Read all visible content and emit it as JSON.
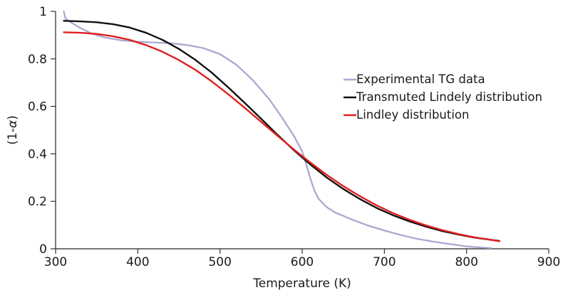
{
  "chart_data": {
    "type": "line",
    "title": "",
    "xlabel": "Temperature (K)",
    "ylabel_prefix": "(1-",
    "ylabel_symbol": "α",
    "ylabel_suffix": ")",
    "xlim": [
      300,
      900
    ],
    "ylim": [
      0,
      1
    ],
    "x_ticks": [
      300,
      400,
      500,
      600,
      700,
      800,
      900
    ],
    "y_ticks": [
      0,
      0.2,
      0.4,
      0.6,
      0.8,
      1
    ],
    "x_tick_labels": [
      "300",
      "400",
      "500",
      "600",
      "700",
      "800",
      "900"
    ],
    "y_tick_labels": [
      "0",
      "0.2",
      "0.4",
      "0.6",
      "0.8",
      "1"
    ],
    "grid": false,
    "legend_position": "right-middle",
    "series": [
      {
        "name": "Experimental TG data",
        "color": "#a9a9cf",
        "x": [
          310,
          312,
          318,
          330,
          345,
          360,
          380,
          400,
          420,
          440,
          460,
          480,
          500,
          520,
          540,
          560,
          575,
          590,
          600,
          605,
          610,
          615,
          620,
          630,
          640,
          660,
          680,
          700,
          720,
          740,
          760,
          780,
          800,
          815,
          830
        ],
        "y": [
          1.0,
          0.97,
          0.955,
          0.93,
          0.905,
          0.89,
          0.878,
          0.872,
          0.869,
          0.866,
          0.858,
          0.845,
          0.82,
          0.775,
          0.71,
          0.63,
          0.555,
          0.475,
          0.41,
          0.355,
          0.295,
          0.245,
          0.21,
          0.175,
          0.153,
          0.124,
          0.098,
          0.077,
          0.058,
          0.042,
          0.03,
          0.02,
          0.01,
          0.006,
          0.003
        ]
      },
      {
        "name": "Transmuted Lindely distribution",
        "color": "#111111",
        "x": [
          310,
          330,
          350,
          370,
          390,
          410,
          430,
          450,
          470,
          490,
          510,
          530,
          550,
          570,
          590,
          610,
          630,
          650,
          670,
          690,
          710,
          730,
          750,
          770,
          790,
          810,
          840
        ],
        "y": [
          0.96,
          0.958,
          0.954,
          0.946,
          0.932,
          0.91,
          0.88,
          0.842,
          0.796,
          0.742,
          0.68,
          0.615,
          0.548,
          0.48,
          0.415,
          0.355,
          0.3,
          0.252,
          0.21,
          0.173,
          0.142,
          0.116,
          0.094,
          0.075,
          0.06,
          0.047,
          0.033
        ]
      },
      {
        "name": "Lindley distribution",
        "color": "#e01f1f",
        "x": [
          310,
          330,
          350,
          370,
          390,
          410,
          430,
          450,
          470,
          490,
          510,
          530,
          550,
          570,
          590,
          610,
          630,
          650,
          670,
          690,
          710,
          730,
          750,
          770,
          790,
          810,
          840
        ],
        "y": [
          0.912,
          0.91,
          0.905,
          0.895,
          0.88,
          0.858,
          0.83,
          0.795,
          0.754,
          0.705,
          0.651,
          0.594,
          0.535,
          0.476,
          0.418,
          0.363,
          0.311,
          0.264,
          0.222,
          0.184,
          0.151,
          0.123,
          0.099,
          0.079,
          0.062,
          0.048,
          0.032
        ]
      }
    ]
  }
}
